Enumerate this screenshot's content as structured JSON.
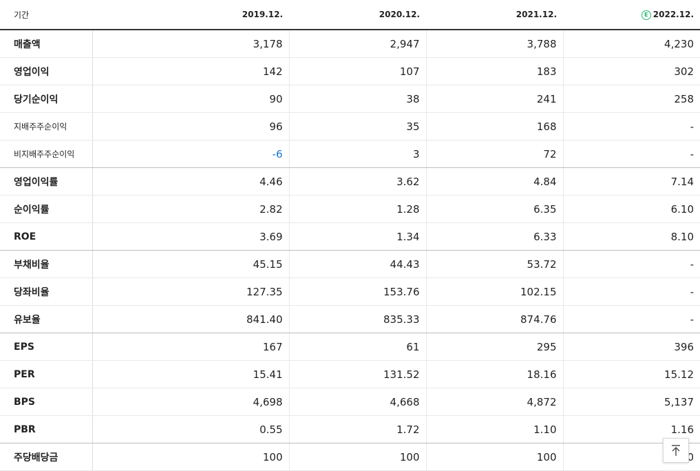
{
  "header": {
    "period_label": "기간",
    "estimate_mark": "E",
    "years": [
      "2019.12.",
      "2020.12.",
      "2021.12.",
      "2022.12."
    ]
  },
  "rows": [
    {
      "label": "매출액",
      "values": [
        "3,178",
        "2,947",
        "3,788",
        "4,230"
      ]
    },
    {
      "label": "영업이익",
      "values": [
        "142",
        "107",
        "183",
        "302"
      ]
    },
    {
      "label": "당기순이익",
      "values": [
        "90",
        "38",
        "241",
        "258"
      ]
    },
    {
      "label": "지배주주순이익",
      "values": [
        "96",
        "35",
        "168",
        "-"
      ]
    },
    {
      "label": "비지배주주순이익",
      "values": [
        "-6",
        "3",
        "72",
        "-"
      ]
    },
    {
      "label": "영업이익률",
      "values": [
        "4.46",
        "3.62",
        "4.84",
        "7.14"
      ]
    },
    {
      "label": "순이익률",
      "values": [
        "2.82",
        "1.28",
        "6.35",
        "6.10"
      ]
    },
    {
      "label": "ROE",
      "values": [
        "3.69",
        "1.34",
        "6.33",
        "8.10"
      ]
    },
    {
      "label": "부채비율",
      "values": [
        "45.15",
        "44.43",
        "53.72",
        "-"
      ]
    },
    {
      "label": "당좌비율",
      "values": [
        "127.35",
        "153.76",
        "102.15",
        "-"
      ]
    },
    {
      "label": "유보율",
      "values": [
        "841.40",
        "835.33",
        "874.76",
        "-"
      ]
    },
    {
      "label": "EPS",
      "values": [
        "167",
        "61",
        "295",
        "396"
      ]
    },
    {
      "label": "PER",
      "values": [
        "15.41",
        "131.52",
        "18.16",
        "15.12"
      ]
    },
    {
      "label": "BPS",
      "values": [
        "4,698",
        "4,668",
        "4,872",
        "5,137"
      ]
    },
    {
      "label": "PBR",
      "values": [
        "0.55",
        "1.72",
        "1.10",
        "1.16"
      ]
    },
    {
      "label": "주당배당금",
      "values": [
        "100",
        "100",
        "100",
        "0"
      ]
    }
  ],
  "colors": {
    "negative_value": "#1a73c9",
    "estimate_badge": "#1fb86a"
  },
  "icons": {
    "scroll_top": "arrow-up-to-line-icon",
    "estimate": "circled-e-icon"
  }
}
